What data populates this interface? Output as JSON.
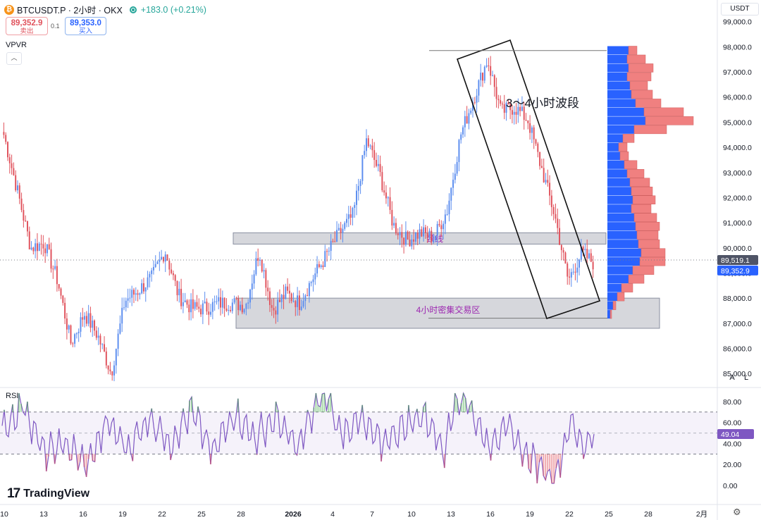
{
  "header": {
    "logo_glyph": "₿",
    "symbol": "BTCUSDT.P · 2小时 · OKX",
    "change": "+183.0 (+0.21%)"
  },
  "trade": {
    "sell_price": "89,352.9",
    "sell_label": "卖出",
    "spread": "0.1",
    "buy_price": "89,353.0",
    "buy_label": "买入"
  },
  "indicator_label": "VPVR",
  "currency": "USDT",
  "scale_buttons": {
    "auto": "A",
    "log": "L"
  },
  "rsi": {
    "label": "RSI",
    "value": "49.04"
  },
  "brand": "TradingView",
  "colors": {
    "up": "#5b8def",
    "down": "#e0525c",
    "vp_up": "#2962ff",
    "vp_down": "#f08080",
    "rsi_line": "#7e57c2",
    "rsi_band": "#7e57c2",
    "zone": "#b2b5be"
  },
  "chart_data": [
    {
      "type": "candlestick",
      "interval": "2小时",
      "x_ticks": [
        "10",
        "13",
        "16",
        "19",
        "22",
        "25",
        "28",
        "2026",
        "4",
        "7",
        "10",
        "13",
        "16",
        "19",
        "22",
        "25",
        "28",
        "2月"
      ],
      "y_ticks": [
        "85,000.0",
        "86,000.0",
        "87,000.0",
        "88,000.0",
        "89,000.0",
        "90,000.0",
        "91,000.0",
        "92,000.0",
        "93,000.0",
        "94,000.0",
        "95,000.0",
        "96,000.0",
        "97,000.0",
        "98,000.0",
        "99,000.0"
      ],
      "ylim": [
        84500,
        99300
      ],
      "price_labels": {
        "last": "89,519.1",
        "bid": "89,352.9"
      },
      "key_points": [
        {
          "x": "10",
          "y": 94500
        },
        {
          "x": "11",
          "y": 92300
        },
        {
          "x": "12",
          "y": 90000
        },
        {
          "x": "13",
          "y": 90200
        },
        {
          "x": "14",
          "y": 88700
        },
        {
          "x": "15",
          "y": 86200
        },
        {
          "x": "16",
          "y": 87400
        },
        {
          "x": "17",
          "y": 86500
        },
        {
          "x": "18",
          "y": 85000
        },
        {
          "x": "19",
          "y": 87900
        },
        {
          "x": "20",
          "y": 88300
        },
        {
          "x": "21",
          "y": 88800
        },
        {
          "x": "22",
          "y": 89900
        },
        {
          "x": "23",
          "y": 88100
        },
        {
          "x": "24",
          "y": 87600
        },
        {
          "x": "25",
          "y": 87600
        },
        {
          "x": "26",
          "y": 87800
        },
        {
          "x": "27",
          "y": 87800
        },
        {
          "x": "28",
          "y": 87700
        },
        {
          "x": "29",
          "y": 89900
        },
        {
          "x": "30",
          "y": 87500
        },
        {
          "x": "31",
          "y": 88200
        },
        {
          "x": "2026",
          "y": 87800
        },
        {
          "x": "2",
          "y": 88800
        },
        {
          "x": "3",
          "y": 89700
        },
        {
          "x": "4",
          "y": 90600
        },
        {
          "x": "5",
          "y": 91300
        },
        {
          "x": "6",
          "y": 94300
        },
        {
          "x": "7",
          "y": 92900
        },
        {
          "x": "8",
          "y": 90900
        },
        {
          "x": "9",
          "y": 90300
        },
        {
          "x": "10",
          "y": 90600
        },
        {
          "x": "11",
          "y": 90400
        },
        {
          "x": "12",
          "y": 91500
        },
        {
          "x": "13",
          "y": 94500
        },
        {
          "x": "14",
          "y": 96000
        },
        {
          "x": "15",
          "y": 97500
        },
        {
          "x": "16",
          "y": 95400
        },
        {
          "x": "17",
          "y": 95600
        },
        {
          "x": "18",
          "y": 95100
        },
        {
          "x": "19",
          "y": 93200
        },
        {
          "x": "20",
          "y": 91300
        },
        {
          "x": "21",
          "y": 88700
        },
        {
          "x": "22",
          "y": 89800
        },
        {
          "x": "23",
          "y": 89350
        }
      ],
      "annotations": [
        {
          "text": "3～4小时波段",
          "kind": "label on rotated rectangle"
        },
        {
          "text": "颈线",
          "kind": "neckline zone",
          "range": [
            90150,
            90600
          ]
        },
        {
          "text": "4小时密集交易区",
          "kind": "consolidation zone",
          "range": [
            86800,
            88000
          ]
        }
      ],
      "volume_profile": {
        "title": "VPVR",
        "rows": [
          {
            "price": 97850,
            "up": 30,
            "down": 12
          },
          {
            "price": 97500,
            "up": 28,
            "down": 26
          },
          {
            "price": 97150,
            "up": 30,
            "down": 35
          },
          {
            "price": 96800,
            "up": 28,
            "down": 34
          },
          {
            "price": 96450,
            "up": 32,
            "down": 25
          },
          {
            "price": 96100,
            "up": 34,
            "down": 30
          },
          {
            "price": 95750,
            "up": 40,
            "down": 36
          },
          {
            "price": 95400,
            "up": 52,
            "down": 56
          },
          {
            "price": 95050,
            "up": 54,
            "down": 68
          },
          {
            "price": 94700,
            "up": 38,
            "down": 46
          },
          {
            "price": 94350,
            "up": 22,
            "down": 16
          },
          {
            "price": 94000,
            "up": 16,
            "down": 12
          },
          {
            "price": 93650,
            "up": 18,
            "down": 12
          },
          {
            "price": 93300,
            "up": 24,
            "down": 18
          },
          {
            "price": 92950,
            "up": 28,
            "down": 24
          },
          {
            "price": 92600,
            "up": 32,
            "down": 28
          },
          {
            "price": 92250,
            "up": 34,
            "down": 30
          },
          {
            "price": 91900,
            "up": 36,
            "down": 32
          },
          {
            "price": 91550,
            "up": 34,
            "down": 28
          },
          {
            "price": 91200,
            "up": 38,
            "down": 32
          },
          {
            "price": 90850,
            "up": 40,
            "down": 34
          },
          {
            "price": 90500,
            "up": 42,
            "down": 30
          },
          {
            "price": 90150,
            "up": 44,
            "down": 30
          },
          {
            "price": 89800,
            "up": 48,
            "down": 34
          },
          {
            "price": 89450,
            "up": 46,
            "down": 36
          },
          {
            "price": 89100,
            "up": 36,
            "down": 30
          },
          {
            "price": 88750,
            "up": 30,
            "down": 22
          },
          {
            "price": 88400,
            "up": 20,
            "down": 16
          },
          {
            "price": 88050,
            "up": 14,
            "down": 10
          },
          {
            "price": 87700,
            "up": 8,
            "down": 4
          },
          {
            "price": 87350,
            "up": 4,
            "down": 2
          }
        ]
      }
    },
    {
      "type": "line",
      "title": "RSI",
      "y_ticks": [
        "0.00",
        "20.00",
        "40.00",
        "60.00",
        "80.00"
      ],
      "ylim": [
        -2,
        90
      ],
      "band": [
        30,
        70
      ],
      "midline": 50,
      "last_value": 49.04,
      "sample_count": 282,
      "key_points": [
        {
          "i": 0,
          "y": 52
        },
        {
          "i": 10,
          "y": 78
        },
        {
          "i": 20,
          "y": 30
        },
        {
          "i": 30,
          "y": 40
        },
        {
          "i": 40,
          "y": 18
        },
        {
          "i": 50,
          "y": 60
        },
        {
          "i": 60,
          "y": 35
        },
        {
          "i": 70,
          "y": 65
        },
        {
          "i": 80,
          "y": 40
        },
        {
          "i": 90,
          "y": 72
        },
        {
          "i": 100,
          "y": 30
        },
        {
          "i": 110,
          "y": 70
        },
        {
          "i": 120,
          "y": 45
        },
        {
          "i": 130,
          "y": 65
        },
        {
          "i": 140,
          "y": 35
        },
        {
          "i": 150,
          "y": 80
        },
        {
          "i": 155,
          "y": 86
        },
        {
          "i": 160,
          "y": 50
        },
        {
          "i": 170,
          "y": 62
        },
        {
          "i": 180,
          "y": 40
        },
        {
          "i": 190,
          "y": 55
        },
        {
          "i": 200,
          "y": 68
        },
        {
          "i": 210,
          "y": 35
        },
        {
          "i": 215,
          "y": 80
        },
        {
          "i": 220,
          "y": 84
        },
        {
          "i": 230,
          "y": 40
        },
        {
          "i": 240,
          "y": 55
        },
        {
          "i": 250,
          "y": 25
        },
        {
          "i": 258,
          "y": 15
        },
        {
          "i": 262,
          "y": 4
        },
        {
          "i": 270,
          "y": 60
        },
        {
          "i": 276,
          "y": 38
        },
        {
          "i": 281,
          "y": 49
        }
      ]
    }
  ]
}
